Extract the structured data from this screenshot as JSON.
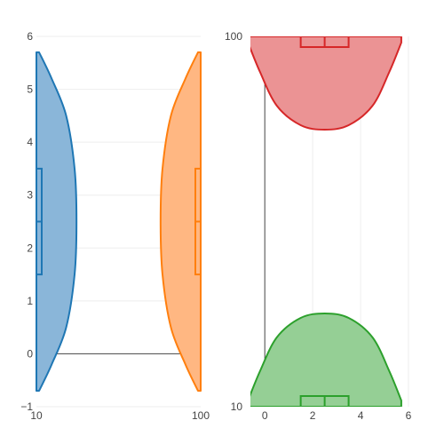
{
  "chart_data": [
    {
      "type": "violin",
      "xaxis": {
        "type": "log",
        "range": [
          10,
          100
        ],
        "ticks": [
          "10",
          "100"
        ]
      },
      "yaxis": {
        "range": [
          -1,
          6
        ],
        "ticks": [
          "−1",
          "0",
          "1",
          "2",
          "3",
          "4",
          "5",
          "6"
        ],
        "zeroline": true
      },
      "grid": true,
      "series": [
        {
          "color": "#1f77b4",
          "fill": "#8ab6d9",
          "position": 10,
          "side": "positive",
          "kde_y": [
            -0.7,
            -0.2,
            0.5,
            1.5,
            2.5,
            3.5,
            4.5,
            5.2,
            5.7
          ],
          "kde_w": [
            0.07,
            0.4,
            0.78,
            1.0,
            1.05,
            1.0,
            0.78,
            0.4,
            0.07
          ],
          "box": {
            "min": 1,
            "q1": 1.5,
            "median": 2.5,
            "q3": 3.5,
            "max": 4
          }
        },
        {
          "color": "#ff7f0e",
          "fill": "#ffb782",
          "position": 100,
          "side": "negative",
          "kde_y": [
            -0.7,
            -0.2,
            0.5,
            1.5,
            2.5,
            3.5,
            4.5,
            5.2,
            5.7
          ],
          "kde_w": [
            0.07,
            0.4,
            0.78,
            1.0,
            1.05,
            1.0,
            0.78,
            0.4,
            0.07
          ],
          "box": {
            "min": 1,
            "q1": 1.5,
            "median": 2.5,
            "q3": 3.5,
            "max": 4
          }
        }
      ]
    },
    {
      "type": "violin",
      "orientation": "horizontal",
      "xaxis": {
        "range": [
          -0.6,
          6
        ],
        "ticks": [
          "0",
          "2",
          "4",
          "6"
        ],
        "zeroline": true
      },
      "yaxis": {
        "type": "log",
        "range": [
          10,
          100
        ],
        "ticks": [
          "10",
          "100"
        ]
      },
      "grid": true,
      "series": [
        {
          "color": "#d62728",
          "fill": "#eb9394",
          "position": 100,
          "side": "negative",
          "kde_x": [
            -0.7,
            -0.2,
            0.5,
            1.5,
            2.5,
            3.5,
            4.5,
            5.2,
            5.7
          ],
          "kde_w": [
            0.07,
            0.4,
            0.78,
            1.0,
            1.05,
            1.0,
            0.78,
            0.4,
            0.07
          ],
          "box": {
            "min": 1,
            "q1": 1.5,
            "median": 2.5,
            "q3": 3.5,
            "max": 4
          }
        },
        {
          "color": "#2ca02c",
          "fill": "#95cf95",
          "position": 10,
          "side": "positive",
          "kde_x": [
            -0.7,
            -0.2,
            0.5,
            1.5,
            2.5,
            3.5,
            4.5,
            5.2,
            5.7
          ],
          "kde_w": [
            0.07,
            0.4,
            0.78,
            1.0,
            1.05,
            1.0,
            0.78,
            0.4,
            0.07
          ],
          "box": {
            "min": 1,
            "q1": 1.5,
            "median": 2.5,
            "q3": 3.5,
            "max": 4
          }
        }
      ]
    }
  ]
}
